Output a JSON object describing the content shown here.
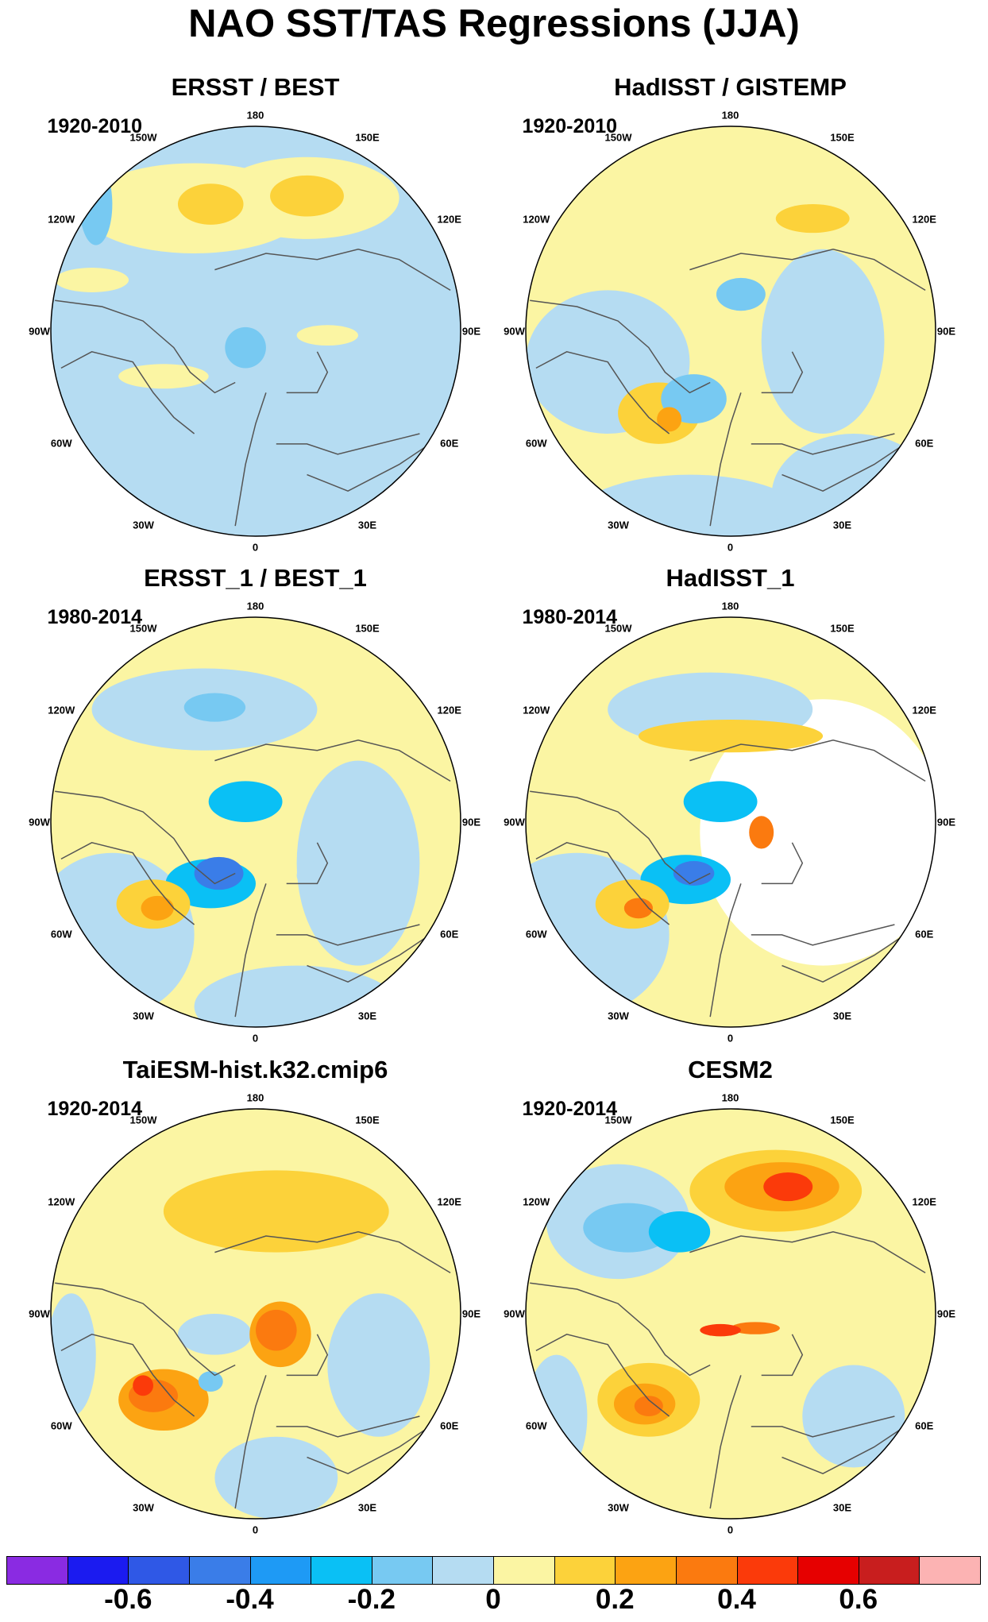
{
  "title": "NAO SST/TAS Regressions (JJA)",
  "panels": [
    {
      "title": "ERSST / BEST",
      "years": "1920-2010",
      "style": "ersst",
      "col": 0,
      "row": 0
    },
    {
      "title": "HadISST / GISTEMP",
      "years": "1920-2010",
      "style": "hadisst",
      "col": 1,
      "row": 0
    },
    {
      "title": "ERSST_1 / BEST_1",
      "years": "1980-2014",
      "style": "ersst1",
      "col": 0,
      "row": 1
    },
    {
      "title": "HadISST_1",
      "years": "1980-2014",
      "style": "hadisst1",
      "col": 1,
      "row": 1
    },
    {
      "title": "TaiESM-hist.k32.cmip6",
      "years": "1920-2014",
      "style": "taiesm",
      "col": 0,
      "row": 2
    },
    {
      "title": "CESM2",
      "years": "1920-2014",
      "style": "cesm2",
      "col": 1,
      "row": 2
    }
  ],
  "longitude_labels": [
    "180",
    "150E",
    "120E",
    "90E",
    "60E",
    "30E",
    "0",
    "30W",
    "60W",
    "90W",
    "120W",
    "150W"
  ],
  "colorbar": {
    "levels": [
      -0.7,
      -0.6,
      -0.5,
      -0.4,
      -0.3,
      -0.2,
      -0.1,
      0,
      0.1,
      0.2,
      0.3,
      0.4,
      0.5,
      0.6,
      0.7
    ],
    "colors": [
      "#8a2be2",
      "#1b1bf0",
      "#2f58e6",
      "#3a7de8",
      "#1e9af5",
      "#0ac0f5",
      "#77c9f2",
      "#b5dcf2",
      "#fbf5a3",
      "#fcd23a",
      "#fca312",
      "#fb7a0f",
      "#fb3a0a",
      "#e60000",
      "#c81e1e",
      "#fcb3b3"
    ],
    "tick_labels": [
      "-0.6",
      "-0.4",
      "-0.2",
      "0",
      "0.2",
      "0.4",
      "0.6"
    ],
    "tick_values": [
      -0.6,
      -0.4,
      -0.2,
      0,
      0.2,
      0.4,
      0.6
    ]
  }
}
